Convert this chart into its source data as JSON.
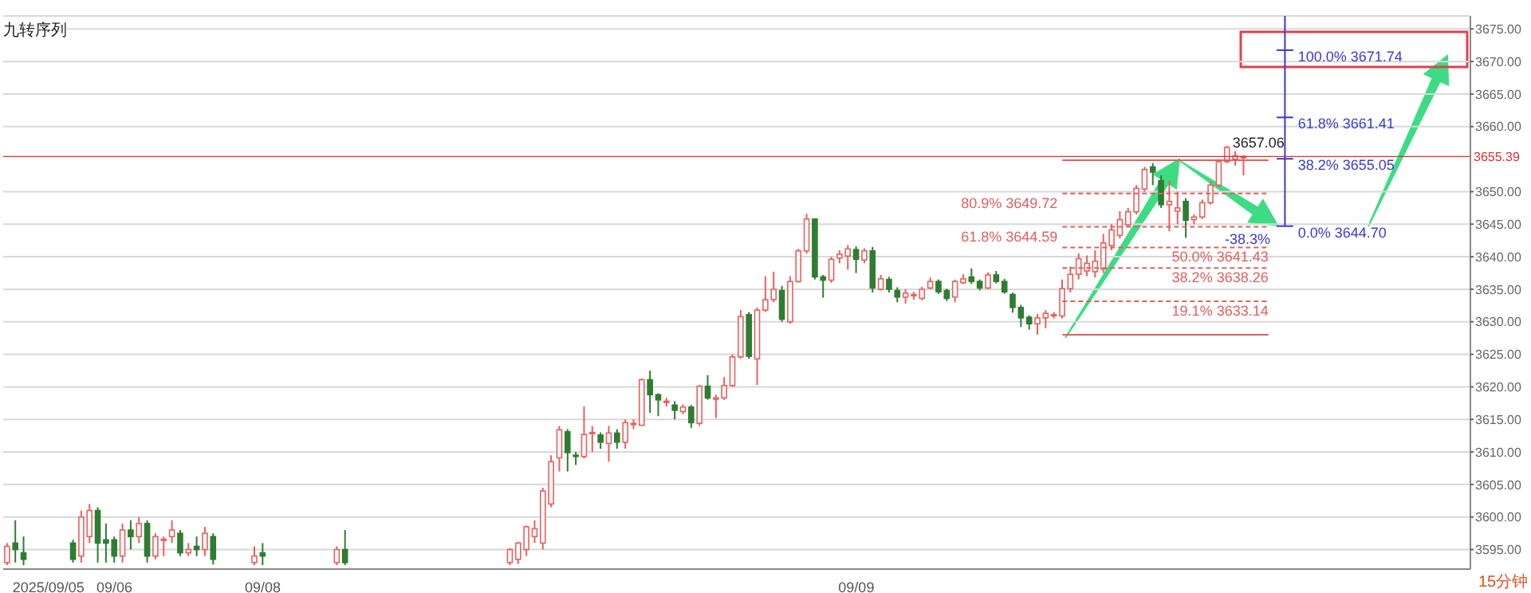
{
  "chart_data": {
    "type": "candlestick",
    "categories": [
      null,
      null,
      null,
      null,
      null,
      "2025/09/05",
      null,
      null,
      null,
      null,
      null,
      null,
      null,
      "09/06",
      null,
      null,
      null,
      null,
      null,
      null,
      null,
      null,
      null,
      null,
      null,
      null,
      null,
      null,
      null,
      null,
      null,
      "09/08",
      null,
      null,
      null,
      null,
      null,
      null,
      null,
      null,
      null,
      null,
      null,
      null,
      null,
      null,
      null,
      null,
      null,
      null,
      null,
      null,
      null,
      null,
      null,
      null,
      null,
      null,
      null,
      null,
      null,
      null,
      null,
      null,
      null,
      null,
      null,
      null,
      null,
      null,
      null,
      null,
      null,
      null,
      null,
      null,
      null,
      null,
      null,
      null,
      null,
      null,
      null,
      null,
      null,
      null,
      null,
      null,
      null,
      null,
      null,
      null,
      null,
      null,
      null,
      null,
      null,
      null,
      null,
      null,
      null,
      null,
      null,
      "09/09",
      null,
      null,
      null,
      null,
      null,
      null,
      null,
      null,
      null,
      null,
      null,
      null,
      null,
      null,
      null,
      null,
      null,
      null,
      null,
      null,
      null,
      null,
      null,
      null,
      null,
      null,
      null,
      null,
      null,
      null,
      null,
      null,
      null,
      null,
      null,
      null,
      null,
      null,
      null,
      null,
      null,
      null,
      null,
      null,
      null,
      null,
      null,
      null,
      null,
      null,
      null,
      null,
      null,
      null,
      null,
      null,
      null,
      null,
      null,
      null,
      null,
      null,
      null,
      null,
      null,
      null,
      null,
      null,
      null,
      null,
      null,
      null,
      null,
      null
    ],
    "ohlc": [
      [
        3593,
        3596,
        3592.6,
        3595.5
      ],
      [
        3596,
        3599.5,
        3593,
        3595
      ],
      [
        3594.5,
        3597,
        3592.6,
        3593.5
      ],
      null,
      null,
      null,
      null,
      null,
      [
        3596,
        3596.5,
        3593,
        3593.5
      ],
      [
        3594,
        3601,
        3593,
        3600
      ],
      [
        3597,
        3602,
        3596,
        3601
      ],
      [
        3601,
        3601.5,
        3593,
        3596
      ],
      [
        3596.5,
        3599,
        3593,
        3596
      ],
      [
        3596.5,
        3597,
        3593,
        3594
      ],
      [
        3594,
        3599,
        3593,
        3598
      ],
      [
        3598,
        3599.5,
        3595,
        3597
      ],
      [
        3597,
        3600,
        3596,
        3599
      ],
      [
        3599,
        3599.5,
        3593,
        3594
      ],
      [
        3594,
        3597.5,
        3593.5,
        3597
      ],
      [
        3596.5,
        3597,
        3594,
        3596.6
      ],
      [
        3597,
        3599.5,
        3596,
        3598
      ],
      [
        3597.5,
        3598,
        3594,
        3594.5
      ],
      [
        3594.5,
        3596,
        3594,
        3595
      ],
      [
        3595.5,
        3597,
        3594,
        3595
      ],
      [
        3595,
        3598.5,
        3594,
        3597.5
      ],
      [
        3597,
        3597.5,
        3592.7,
        3593.5
      ],
      null,
      null,
      null,
      null,
      [
        3593,
        3595.5,
        3592.6,
        3594
      ],
      [
        3594.5,
        3596,
        3592.6,
        3594
      ],
      null,
      null,
      null,
      null,
      null,
      null,
      null,
      null,
      [
        3593,
        3595.5,
        3592.6,
        3595
      ],
      [
        3595,
        3598,
        3592.6,
        3593
      ],
      null,
      null,
      null,
      null,
      null,
      null,
      null,
      null,
      null,
      null,
      null,
      null,
      null,
      null,
      null,
      null,
      null,
      null,
      null,
      [
        3593,
        3595.2,
        3592.6,
        3595
      ],
      [
        3593.5,
        3596.2,
        3592.8,
        3596
      ],
      [
        3595,
        3598.7,
        3594,
        3598.5
      ],
      [
        3597,
        3599.5,
        3596,
        3598.2
      ],
      [
        3596,
        3604.5,
        3595,
        3604
      ],
      [
        3602,
        3609.5,
        3601.5,
        3608.5
      ],
      [
        3609.1,
        3614,
        3607,
        3613.4
      ],
      [
        3613.1,
        3613.5,
        3607,
        3609.9
      ],
      [
        3609.5,
        3610,
        3608,
        3609.3
      ],
      [
        3609.3,
        3617,
        3609,
        3612.7
      ],
      [
        3612.9,
        3614,
        3610,
        3613
      ],
      [
        3612.6,
        3613,
        3610.5,
        3611.5
      ],
      [
        3611.3,
        3614,
        3608.5,
        3612.9
      ],
      [
        3612.9,
        3613.5,
        3610.5,
        3611.5
      ],
      [
        3611.5,
        3615,
        3610.5,
        3614.5
      ],
      [
        3614.3,
        3615,
        3613.5,
        3614.4
      ],
      [
        3614.1,
        3621.3,
        3614,
        3621.1
      ],
      [
        3621.1,
        3622.5,
        3616,
        3618.8
      ],
      [
        3618.8,
        3619,
        3615.5,
        3618
      ],
      [
        3617.7,
        3618.3,
        3617,
        3617.8
      ],
      [
        3617.2,
        3617.8,
        3615,
        3616.4
      ],
      [
        3616.2,
        3617.3,
        3615.8,
        3616.9
      ],
      [
        3616.9,
        3617.2,
        3613.7,
        3614.5
      ],
      [
        3614.4,
        3620.3,
        3614,
        3620.1
      ],
      [
        3620.1,
        3621.8,
        3618,
        3618.3
      ],
      [
        3618.2,
        3618.8,
        3615.2,
        3618.3
      ],
      [
        3618.3,
        3621.5,
        3618,
        3620.2
      ],
      [
        3620.2,
        3625,
        3620,
        3624.6
      ],
      [
        3624.6,
        3631.8,
        3624.3,
        3630.8
      ],
      [
        3631.1,
        3631.5,
        3624.3,
        3624.7
      ],
      [
        3624.3,
        3632.2,
        3620.3,
        3631.8
      ],
      [
        3631.8,
        3637,
        3631.5,
        3633.4
      ],
      [
        3633.4,
        3637.7,
        3633,
        3635
      ],
      [
        3634.8,
        3635.5,
        3630,
        3630.4
      ],
      [
        3630,
        3637,
        3629.7,
        3636.2
      ],
      [
        3636.2,
        3641.2,
        3636,
        3640.9
      ],
      [
        3640.9,
        3646.6,
        3640.5,
        3645.8
      ],
      [
        3645.8,
        3645.9,
        3636.5,
        3636.9
      ],
      [
        3636.9,
        3637.2,
        3633.7,
        3636.4
      ],
      [
        3636.4,
        3640,
        3636,
        3639.6
      ],
      [
        3639.8,
        3641,
        3639,
        3640.4
      ],
      [
        3640.1,
        3641.8,
        3638,
        3641.2
      ],
      [
        3641.1,
        3641.6,
        3637.5,
        3639.6
      ],
      [
        3639.5,
        3641.3,
        3639,
        3640.9
      ],
      [
        3640.9,
        3641.5,
        3634.5,
        3635.2
      ],
      [
        3635,
        3637.2,
        3634.8,
        3636.6
      ],
      [
        3636.5,
        3636.9,
        3634.5,
        3635
      ],
      [
        3634.8,
        3635.3,
        3633,
        3633.8
      ],
      [
        3633.8,
        3635,
        3632.8,
        3634.4
      ],
      [
        3634.1,
        3634.6,
        3633.4,
        3634.2
      ],
      [
        3633.6,
        3635.4,
        3633.3,
        3635
      ],
      [
        3635.2,
        3636.8,
        3635,
        3636.2
      ],
      [
        3636.2,
        3636.5,
        3634.3,
        3634.6
      ],
      [
        3634.8,
        3635.1,
        3633.2,
        3633.6
      ],
      [
        3633.8,
        3636.5,
        3633,
        3636.2
      ],
      [
        3636,
        3637.3,
        3635.8,
        3636.6
      ],
      [
        3636.9,
        3638.2,
        3635.8,
        3636.2
      ],
      [
        3636.2,
        3636.5,
        3634.8,
        3635.2
      ],
      [
        3635.2,
        3637.6,
        3635,
        3637.2
      ],
      [
        3637.2,
        3637.8,
        3635.9,
        3636.2
      ],
      [
        3636.2,
        3636.6,
        3634.3,
        3634.6
      ],
      [
        3634.2,
        3634.5,
        3631.4,
        3632.2
      ],
      [
        3632.2,
        3632.6,
        3629.2,
        3630.6
      ],
      [
        3630.7,
        3631,
        3628.8,
        3629.7
      ],
      [
        3629.7,
        3631.2,
        3628,
        3630.6
      ],
      [
        3630.6,
        3631.8,
        3629,
        3631.3
      ],
      [
        3631,
        3631.5,
        3630.5,
        3631.1
      ],
      [
        3630.9,
        3636.5,
        3630.5,
        3635.1
      ],
      [
        3635.1,
        3638.5,
        3634.5,
        3637.3
      ],
      [
        3637.3,
        3640.5,
        3636.5,
        3639.7
      ],
      [
        3637.8,
        3640.2,
        3637,
        3639
      ],
      [
        3637.7,
        3641,
        3636.8,
        3639.3
      ],
      [
        3638.1,
        3643.5,
        3637.5,
        3642.1
      ],
      [
        3641.7,
        3645,
        3641,
        3644.1
      ],
      [
        3643.3,
        3647,
        3642.8,
        3645.7
      ],
      [
        3644.9,
        3647.5,
        3644.5,
        3646.9
      ],
      [
        3646.9,
        3651,
        3646.5,
        3650.5
      ],
      [
        3650.4,
        3653.8,
        3650,
        3653.4
      ],
      [
        3653.8,
        3654.4,
        3651,
        3653
      ],
      [
        3651.7,
        3652.5,
        3647.5,
        3648
      ],
      [
        3648,
        3651.7,
        3643.9,
        3648.5
      ],
      [
        3647,
        3650,
        3645,
        3647.5
      ],
      [
        3648.5,
        3649,
        3642.9,
        3645.6
      ],
      [
        3645.7,
        3646.5,
        3645,
        3646.1
      ],
      [
        3646.1,
        3648.8,
        3645.8,
        3648.3
      ],
      [
        3648.3,
        3651.5,
        3648,
        3651
      ],
      [
        3651,
        3655,
        3650.7,
        3654.6
      ],
      [
        3654.6,
        3657.06,
        3654.4,
        3656.8
      ],
      [
        3655,
        3656.2,
        3654,
        3655.5
      ],
      [
        3655.3,
        3655.6,
        3652.5,
        3655.39
      ],
      null,
      null,
      null,
      null,
      null,
      null,
      null,
      null,
      null,
      null,
      null,
      null,
      null,
      null,
      null,
      null,
      null,
      null,
      null,
      null,
      null,
      null,
      null,
      null,
      null,
      null,
      null
    ],
    "value_labels": [
      null,
      null,
      null,
      null,
      null,
      null,
      null,
      null,
      null,
      null,
      null,
      null,
      null,
      null,
      null,
      null,
      null,
      null,
      null,
      null,
      null,
      null,
      null,
      null,
      null,
      null,
      null,
      null,
      null,
      null,
      null,
      null,
      null,
      null,
      null,
      null,
      null,
      null,
      null,
      null,
      null,
      null,
      null,
      null,
      null,
      null,
      null,
      null,
      null,
      null,
      null,
      null,
      null,
      null,
      null,
      null,
      null,
      null,
      null,
      null,
      null,
      null,
      null,
      null,
      null,
      null,
      null,
      null,
      null,
      null,
      null,
      null,
      null,
      null,
      null,
      null,
      null,
      null,
      null,
      null,
      null,
      null,
      null,
      null,
      null,
      null,
      null,
      null,
      null,
      null,
      null,
      null,
      null,
      null,
      null,
      null,
      null,
      null,
      null,
      null,
      null,
      null,
      null,
      null,
      null,
      null,
      null,
      null,
      null,
      null,
      null,
      null,
      null,
      null,
      null,
      null,
      null,
      null,
      null,
      null,
      null,
      null,
      null,
      null,
      null,
      null,
      null,
      null,
      null,
      null,
      null,
      null,
      null,
      null,
      null,
      null,
      null,
      null,
      null,
      null,
      null,
      null,
      null,
      null,
      null,
      null,
      null,
      null,
      "3657.06",
      null,
      null,
      null,
      null,
      null,
      null,
      null,
      null,
      null,
      null,
      null,
      null,
      null,
      null,
      null,
      null,
      null,
      null,
      null,
      null,
      null,
      null,
      null,
      null,
      null,
      null,
      null,
      null,
      null
    ],
    "ylim": [
      3592,
      3677
    ],
    "yticks": [
      {
        "value": 3595,
        "label": "3595.00"
      },
      {
        "value": 3600,
        "label": "3600.00"
      },
      {
        "value": 3605,
        "label": "3605.00"
      },
      {
        "value": 3610,
        "label": "3610.00"
      },
      {
        "value": 3615,
        "label": "3615.00"
      },
      {
        "value": 3620,
        "label": "3620.00"
      },
      {
        "value": 3625,
        "label": "3625.00"
      },
      {
        "value": 3630,
        "label": "3630.00"
      },
      {
        "value": 3635,
        "label": "3635.00"
      },
      {
        "value": 3640,
        "label": "3640.00"
      },
      {
        "value": 3645,
        "label": "3645.00"
      },
      {
        "value": 3650,
        "label": "3650.00"
      },
      {
        "value": 3660,
        "label": "3660.00"
      },
      {
        "value": 3665,
        "label": "3665.00"
      },
      {
        "value": 3670,
        "label": "3670.00"
      },
      {
        "value": 3675,
        "label": "3675.00"
      }
    ],
    "grid": "y",
    "ref_lines": [
      {
        "axis": "y",
        "value": 3655.39,
        "label": "3655.39",
        "color": "#e03030"
      },
      {
        "axis": "y",
        "value": 3654.83,
        "color": "#e06060",
        "line_style": "solid"
      },
      {
        "axis": "y",
        "value": 3649.72,
        "label": "80.9% 3649.72",
        "color": "#e06060",
        "line_style": "dashed"
      },
      {
        "axis": "y",
        "value": 3644.59,
        "label": "61.8% 3644.59",
        "color": "#e06060",
        "line_style": "dashed"
      },
      {
        "axis": "y",
        "value": 3641.43,
        "label": "50.0% 3641.43",
        "color": "#e06060",
        "line_style": "dashed"
      },
      {
        "axis": "y",
        "value": 3638.26,
        "label": "38.2% 3638.26",
        "color": "#e06060",
        "line_style": "dashed"
      },
      {
        "axis": "y",
        "value": 3633.14,
        "label": "19.1% 3633.14",
        "color": "#e06060",
        "line_style": "dashed"
      },
      {
        "axis": "y",
        "value": 3628.02,
        "color": "#e06060",
        "line_style": "solid"
      },
      {
        "axis": "y",
        "value": 3671.74,
        "label": "100.0% 3671.74",
        "color": "#3a3ad0",
        "line_style": "solid"
      },
      {
        "axis": "y",
        "value": 3661.41,
        "label": "61.8% 3661.41",
        "color": "#3a3ad0",
        "line_style": "solid"
      },
      {
        "axis": "y",
        "value": 3655.05,
        "label": "38.2% 3655.05",
        "color": "#3a3ad0",
        "line_style": "solid"
      },
      {
        "axis": "y",
        "value": 3644.7,
        "label": "0.0% 3644.70",
        "color": "#3a3ad0",
        "line_style": "solid"
      }
    ],
    "annotations": [
      "九转序列",
      "15分钟",
      "-38.3%"
    ]
  }
}
